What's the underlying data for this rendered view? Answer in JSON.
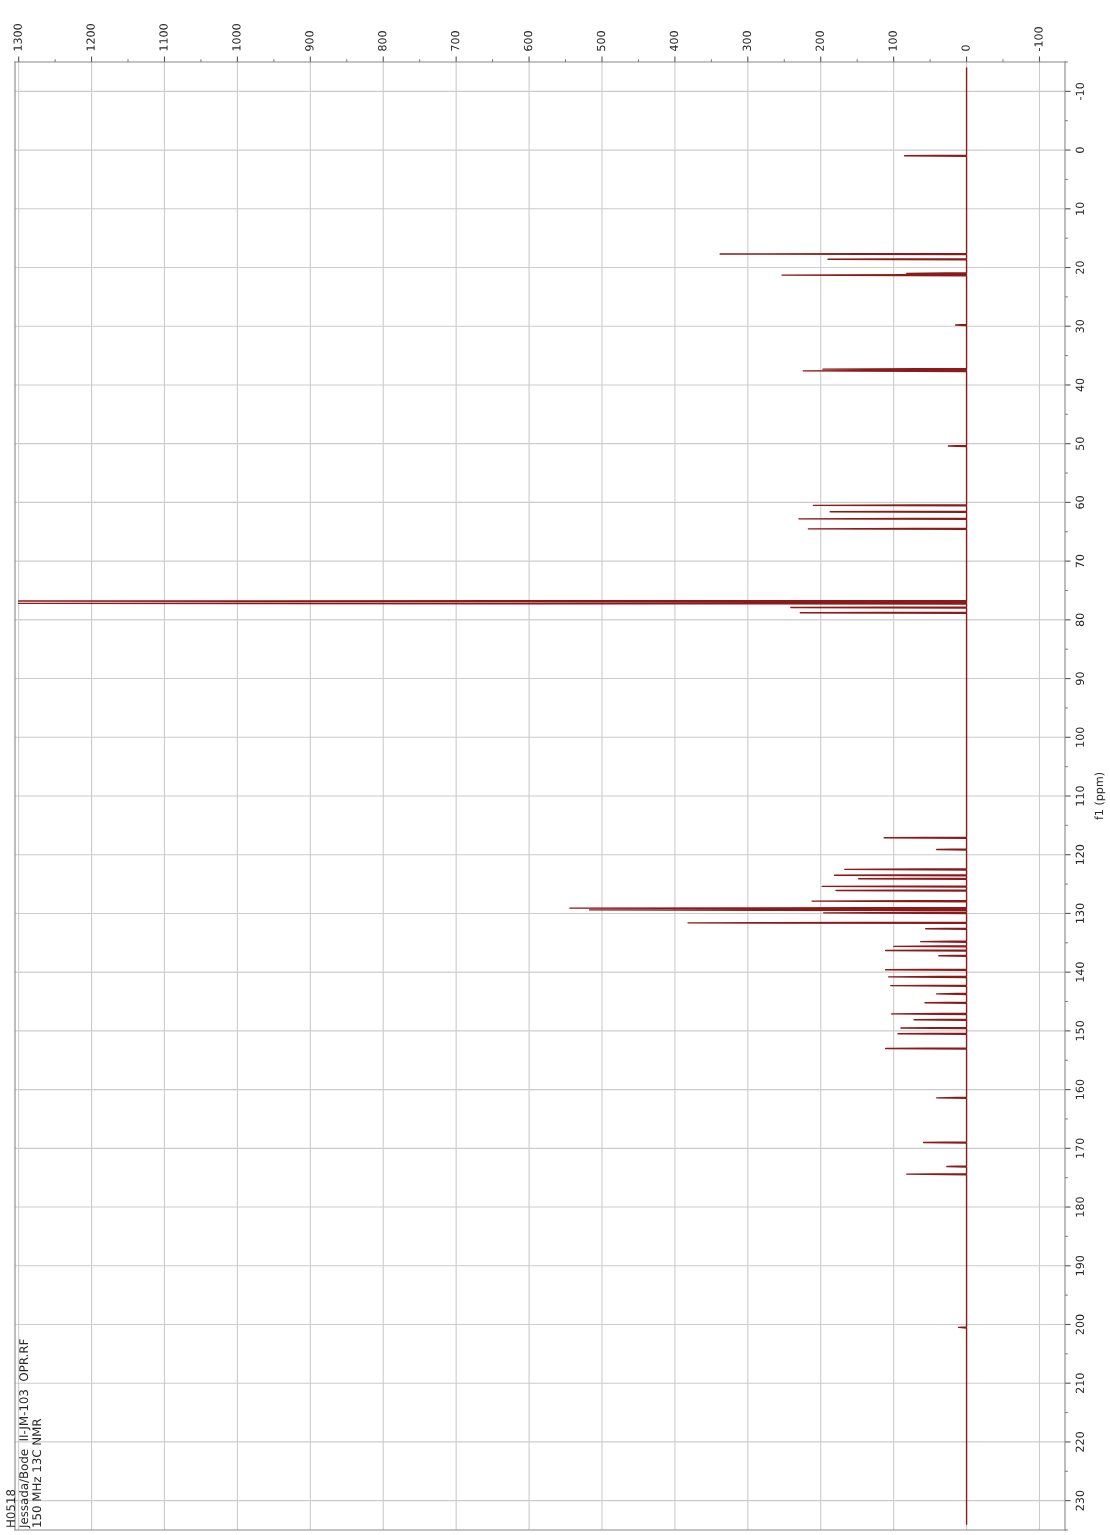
{
  "chart_data": {
    "type": "line",
    "ylabel": "f1 (ppm)",
    "annotations": [
      "H0518",
      "Jessada/Bode  II-JM-103  OPR.RF",
      "150 MHz 13C NMR"
    ],
    "ylim": [
      235,
      -15
    ],
    "yticks": [
      -10,
      0,
      10,
      20,
      30,
      40,
      50,
      60,
      70,
      80,
      90,
      100,
      110,
      120,
      130,
      140,
      150,
      160,
      170,
      180,
      190,
      200,
      210,
      220,
      230
    ],
    "xlim": [
      1305,
      -135
    ],
    "xticks": [
      -100,
      0,
      100,
      200,
      300,
      400,
      500,
      600,
      700,
      800,
      900,
      1000,
      1100,
      1200,
      1300
    ],
    "grid": true,
    "legend": false,
    "marker": "none",
    "line_style": "solid",
    "series": [
      {
        "color": "#8b1a1a",
        "values": [
          -14,
          0.87,
          0.97,
          1.07,
          17.6,
          17.7,
          17.8,
          18.5,
          18.6,
          18.7,
          20.9,
          21.0,
          21.1,
          21.2,
          21.3,
          21.4,
          29.7,
          29.8,
          29.9,
          37.2,
          37.3,
          37.4,
          37.5,
          37.6,
          37.7,
          50.3,
          50.4,
          50.5,
          60.4,
          60.5,
          60.6,
          61.5,
          61.6,
          61.7,
          62.7,
          62.8,
          62.9,
          64.4,
          64.5,
          64.6,
          76.7,
          76.8,
          76.9,
          77.1,
          77.2,
          77.3,
          77.8,
          77.9,
          78.0,
          78.7,
          78.8,
          78.9,
          117.0,
          117.1,
          117.2,
          119.0,
          119.1,
          119.2,
          122.4,
          122.5,
          122.6,
          123.4,
          123.5,
          123.6,
          124.0,
          124.1,
          124.2,
          125.3,
          125.4,
          125.5,
          126.0,
          126.1,
          126.2,
          127.8,
          127.9,
          128.0,
          129.0,
          129.1,
          129.2,
          129.3,
          129.4,
          129.5,
          129.8,
          129.9,
          130.0,
          131.5,
          131.6,
          131.7,
          132.5,
          132.6,
          132.7,
          134.7,
          134.8,
          134.9,
          135.5,
          135.6,
          135.7,
          136.2,
          136.3,
          136.4,
          137.1,
          137.2,
          137.3,
          139.5,
          139.6,
          139.7,
          140.7,
          140.8,
          140.9,
          142.2,
          142.3,
          142.4,
          143.6,
          143.7,
          143.8,
          145.1,
          145.2,
          145.3,
          147.0,
          147.1,
          147.2,
          148.0,
          148.1,
          148.2,
          149.4,
          149.5,
          149.6,
          150.4,
          150.5,
          150.6,
          152.9,
          153.0,
          153.1,
          161.3,
          161.4,
          161.5,
          168.9,
          169.0,
          169.1,
          173.0,
          173.1,
          173.2,
          174.3,
          174.4,
          174.5,
          200.4,
          200.5,
          200.6,
          234
        ],
        "x": [
          0,
          0,
          85,
          0,
          0,
          338,
          0,
          0,
          190,
          0,
          0,
          82,
          0,
          0,
          253,
          0,
          0,
          15,
          0,
          0,
          197,
          0,
          0,
          224,
          0,
          0,
          25,
          0,
          0,
          210,
          0,
          0,
          187,
          0,
          0,
          230,
          0,
          0,
          217,
          0,
          0,
          1300,
          0,
          0,
          1300,
          0,
          0,
          241,
          0,
          0,
          228,
          0,
          0,
          113,
          0,
          0,
          41,
          0,
          0,
          167,
          0,
          0,
          181,
          0,
          0,
          148,
          0,
          0,
          198,
          0,
          0,
          179,
          0,
          0,
          212,
          0,
          0,
          544,
          0,
          0,
          517,
          0,
          0,
          196,
          0,
          0,
          382,
          0,
          0,
          56,
          0,
          0,
          63,
          0,
          0,
          100,
          0,
          0,
          111,
          0,
          0,
          38,
          0,
          0,
          111,
          0,
          0,
          107,
          0,
          0,
          104,
          0,
          0,
          41,
          0,
          0,
          57,
          0,
          0,
          103,
          0,
          0,
          72,
          0,
          0,
          90,
          0,
          0,
          94,
          0,
          0,
          111,
          0,
          0,
          41,
          0,
          0,
          59,
          0,
          0,
          27,
          0,
          0,
          82,
          0,
          0,
          11,
          0,
          0
        ]
      }
    ]
  }
}
